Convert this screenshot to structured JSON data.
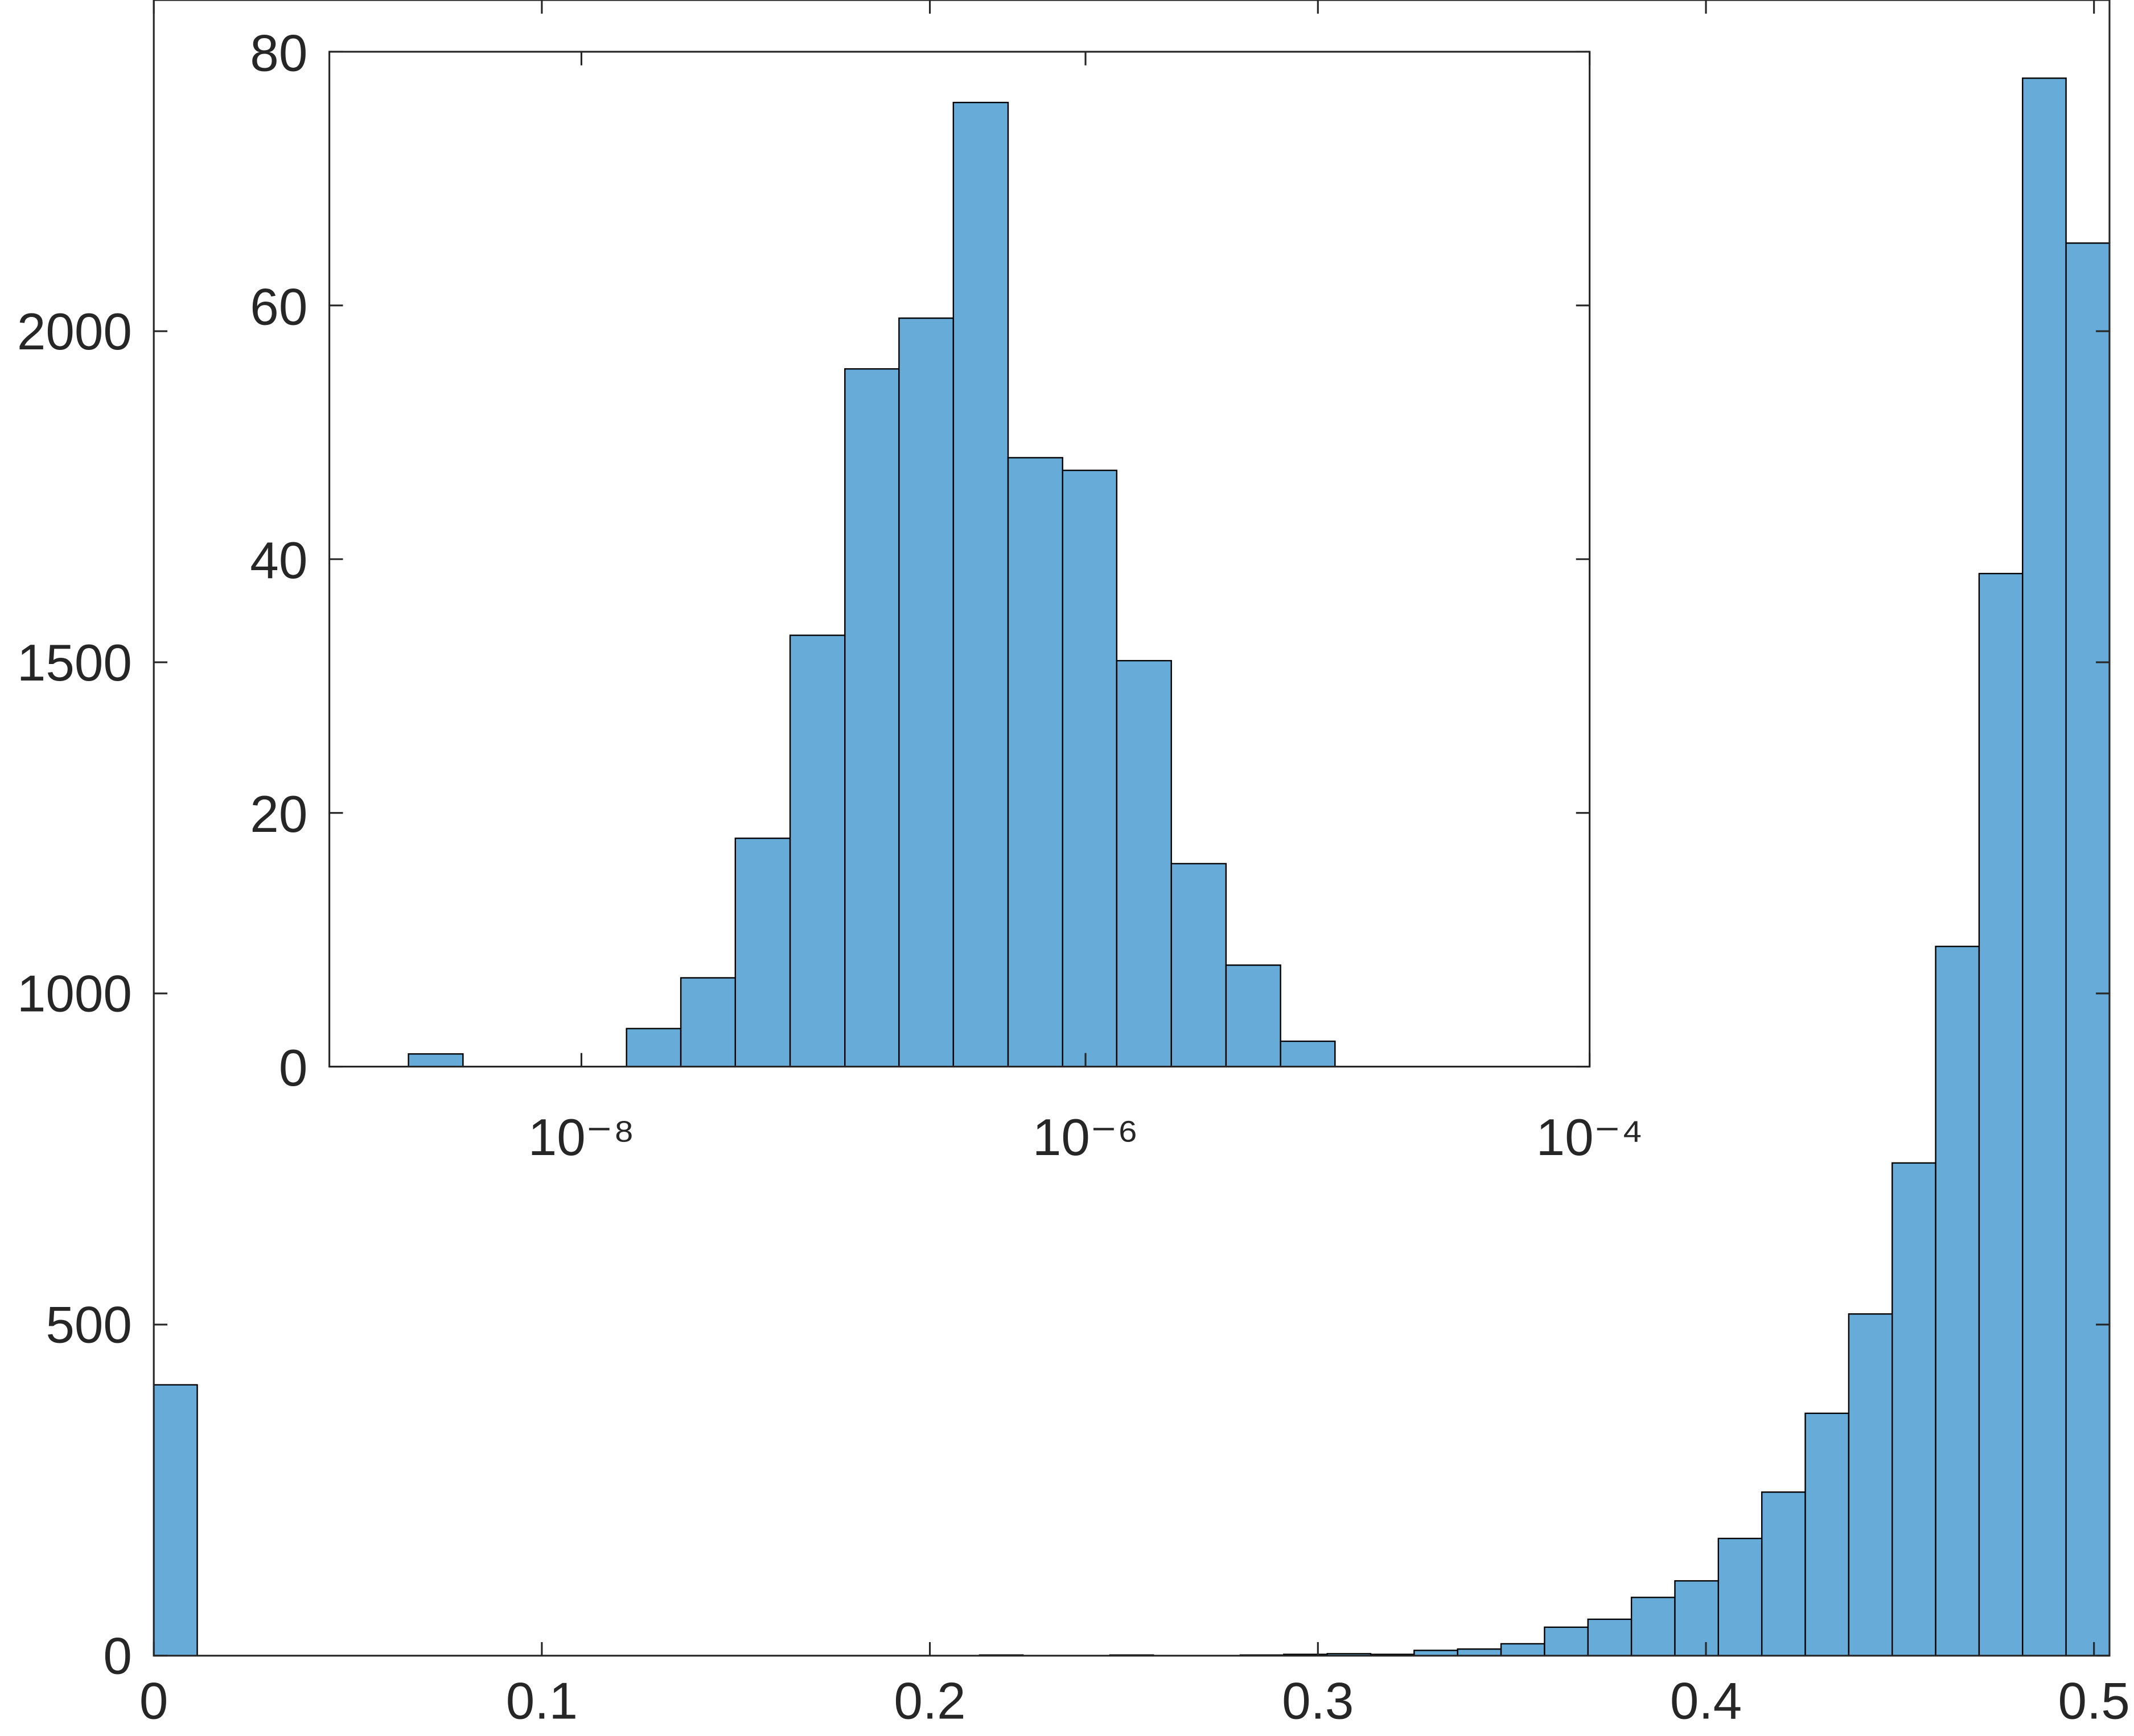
{
  "chart_data": [
    {
      "type": "histogram",
      "color": "#67abd8",
      "bins": [
        0,
        0.0112,
        0.0224,
        0.0336,
        0.0448,
        0.056,
        0.0672,
        0.0784,
        0.0896,
        0.1008,
        0.112,
        0.1232,
        0.1344,
        0.1456,
        0.1568,
        0.168,
        0.1792,
        0.1904,
        0.2016,
        0.2128,
        0.224,
        0.2352,
        0.2464,
        0.2576,
        0.2688,
        0.28,
        0.2912,
        0.3024,
        0.3136,
        0.3248,
        0.336,
        0.3472,
        0.3584,
        0.3696,
        0.3808,
        0.392,
        0.4032,
        0.4144,
        0.4256,
        0.4368,
        0.448,
        0.4592,
        0.4704,
        0.4816,
        0.4928,
        0.504
      ],
      "values": [
        409,
        0,
        0,
        0,
        0,
        0,
        0,
        0,
        0,
        0,
        0,
        0,
        0,
        0,
        0,
        0,
        0,
        0,
        0,
        1,
        0,
        0,
        1,
        0,
        0,
        1,
        2,
        3,
        2,
        8,
        10,
        18,
        43,
        55,
        88,
        113,
        177,
        247,
        366,
        516,
        744,
        1071,
        1634,
        2382,
        2133
      ],
      "xlim": [
        0,
        0.504
      ],
      "xticks": [
        0,
        0.1,
        0.2,
        0.3,
        0.4,
        0.5
      ],
      "ylim": [
        0,
        2500
      ],
      "yticks": [
        0,
        500,
        1000,
        1500,
        2000
      ]
    },
    {
      "type": "histogram",
      "color": "#67abd8",
      "xscale": "log",
      "bins": [
        2.06e-09,
        3.39e-09,
        5.57e-09,
        9.18e-09,
        1.51e-08,
        2.48e-08,
        4.08e-08,
        6.73e-08,
        1.11e-07,
        1.82e-07,
        2.99e-07,
        4.93e-07,
        8.11e-07,
        1.33e-06,
        2.19e-06,
        3.61e-06,
        5.94e-06,
        9.77e-06
      ],
      "values": [
        1,
        0,
        0,
        0,
        3,
        7,
        18,
        34,
        55,
        59,
        76,
        48,
        47,
        32,
        16,
        8,
        2
      ],
      "xlim": [
        1e-09,
        0.0001
      ],
      "xticks": [
        {
          "value": 1e-08,
          "label": "10⁻⁸"
        },
        {
          "value": 1e-06,
          "label": "10⁻⁶"
        },
        {
          "value": 0.0001,
          "label": "10⁻⁴"
        }
      ],
      "ylim": [
        0,
        80
      ],
      "yticks": [
        0,
        20,
        40,
        60,
        80
      ]
    }
  ]
}
